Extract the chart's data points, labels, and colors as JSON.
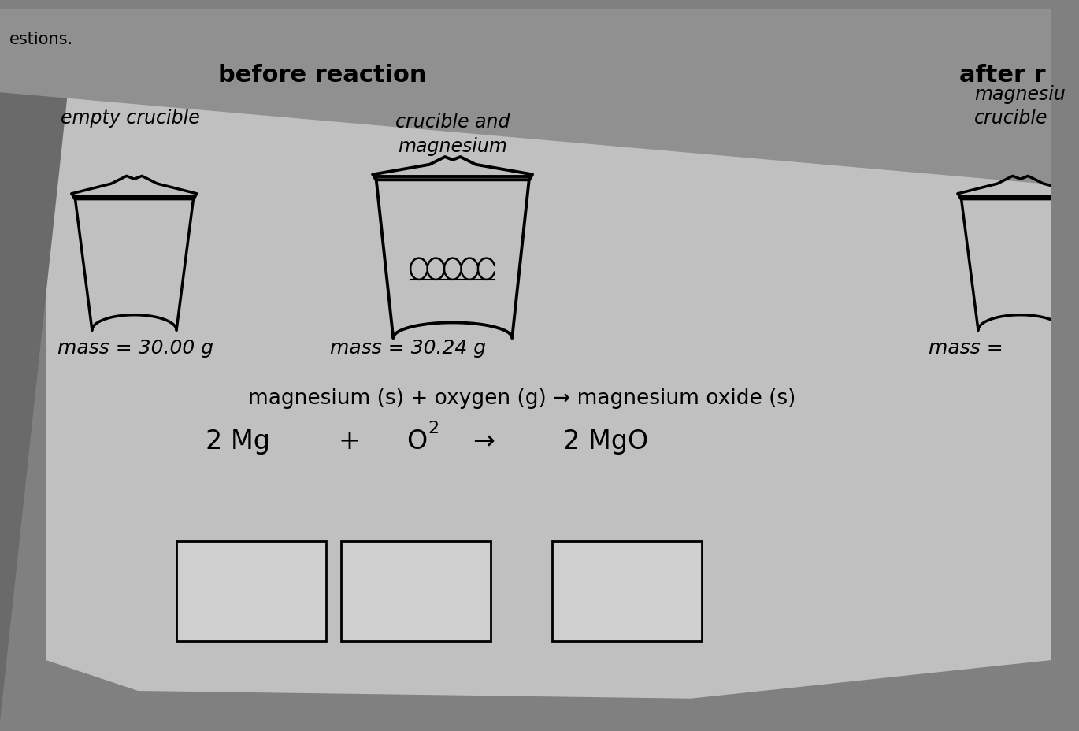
{
  "background_color": "#b0b0b0",
  "title_before": "before reaction",
  "title_after": "after r",
  "label_empty": "empty crucible",
  "label_crucible_mg": "crucible and\nmagnesium",
  "label_after_crucible": "crucible\nmagnesiu",
  "mass_empty": "mass = 30.00 g",
  "mass_crucible_mg": "mass = 30.24 g",
  "mass_after": "mass =",
  "equation_words": "magnesium (s) + oxygen (g) → magnesium oxide (s)",
  "corner_text": "estions.",
  "eq_2mg": "2 Mg",
  "eq_plus": "+",
  "eq_o": "O",
  "eq_2sub": "2",
  "eq_arrow": "→",
  "eq_2mgo": "2 MgO",
  "after_label1": "crucible",
  "after_label2": "magnesiu",
  "mass_after_label": "mass ="
}
